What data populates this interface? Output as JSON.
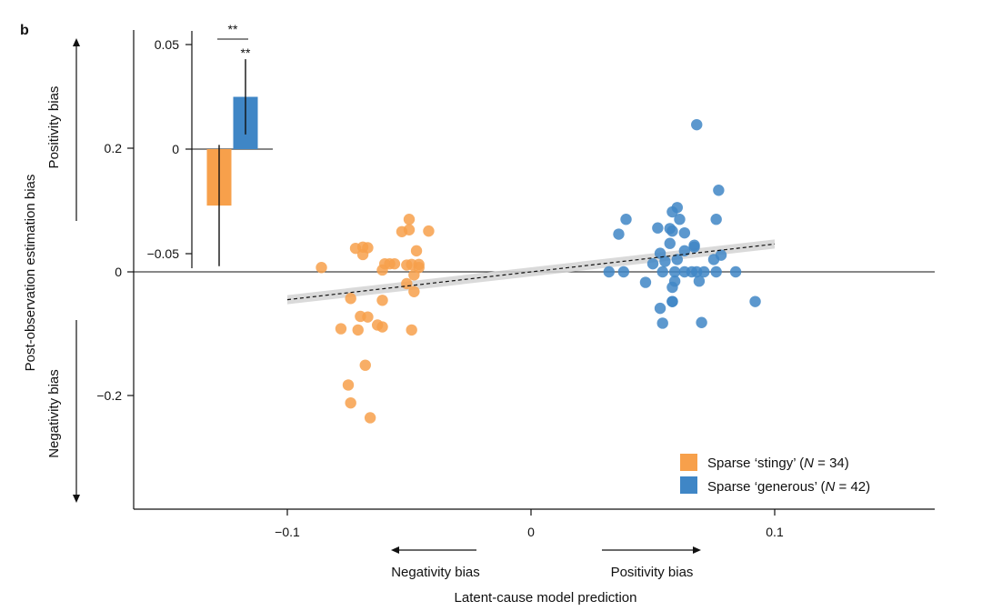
{
  "panel_label": "b",
  "chart_data": [
    {
      "type": "scatter",
      "title": "",
      "xlabel": "Latent-cause model prediction",
      "ylabel": "Post-observation estimation bias",
      "xlim": [
        -0.165,
        0.165
      ],
      "ylim": [
        -0.385,
        0.385
      ],
      "xticks": [
        -0.1,
        0,
        0.1
      ],
      "xtick_labels": [
        "−0.1",
        "0",
        "0.1"
      ],
      "yticks": [
        -0.2,
        0,
        0.2
      ],
      "ytick_labels": [
        "−0.2",
        "0",
        "0.2"
      ],
      "y_annotations": {
        "top": "Positivity bias",
        "bottom": "Negativity bias"
      },
      "x_annotations": {
        "left": "Negativity bias",
        "right": "Positivity bias"
      },
      "legend_position": "bottom-right",
      "series": [
        {
          "name": "Sparse ‘stingy’ (N = 34)",
          "legend_prefix": "Sparse ‘stingy’ (",
          "legend_n_symbol": "N",
          "legend_n_value": " = 34)",
          "color": "#F7A04B",
          "x": [
            -0.086,
            -0.069,
            -0.067,
            -0.072,
            -0.069,
            -0.06,
            -0.058,
            -0.056,
            -0.061,
            -0.05,
            -0.05,
            -0.046,
            -0.046,
            -0.053,
            -0.047,
            -0.049,
            -0.051,
            -0.048,
            -0.042,
            -0.051,
            -0.048,
            -0.061,
            -0.067,
            -0.07,
            -0.074,
            -0.078,
            -0.071,
            -0.063,
            -0.049,
            -0.061,
            -0.068,
            -0.075,
            -0.074,
            -0.066
          ],
          "y": [
            0.007,
            0.04,
            0.039,
            0.038,
            0.028,
            0.013,
            0.013,
            0.013,
            0.003,
            0.085,
            0.068,
            0.012,
            0.007,
            0.065,
            0.034,
            0.012,
            0.011,
            -0.005,
            0.066,
            -0.019,
            -0.032,
            -0.046,
            -0.073,
            -0.072,
            -0.043,
            -0.092,
            -0.094,
            -0.086,
            -0.094,
            -0.089,
            -0.151,
            -0.183,
            -0.212,
            -0.236
          ]
        },
        {
          "name": "Sparse ‘generous’ (N = 42)",
          "legend_prefix": "Sparse ‘generous’ (",
          "legend_n_symbol": "N",
          "legend_n_value": " = 42)",
          "color": "#3F86C6",
          "x": [
            0.068,
            0.077,
            0.058,
            0.06,
            0.039,
            0.052,
            0.057,
            0.061,
            0.076,
            0.036,
            0.058,
            0.063,
            0.057,
            0.067,
            0.067,
            0.063,
            0.053,
            0.078,
            0.055,
            0.075,
            0.06,
            0.05,
            0.032,
            0.038,
            0.054,
            0.059,
            0.063,
            0.066,
            0.068,
            0.071,
            0.076,
            0.084,
            0.047,
            0.059,
            0.058,
            0.058,
            0.069,
            0.092,
            0.053,
            0.058,
            0.054,
            0.07
          ],
          "y": [
            0.238,
            0.132,
            0.097,
            0.104,
            0.085,
            0.071,
            0.07,
            0.085,
            0.085,
            0.061,
            0.066,
            0.063,
            0.046,
            0.043,
            0.04,
            0.034,
            0.03,
            0.027,
            0.017,
            0.02,
            0.02,
            0.013,
            0.0,
            0.0,
            0.0,
            0.0,
            0.0,
            0.0,
            0.0,
            0.0,
            0.0,
            0.0,
            -0.017,
            -0.015,
            -0.025,
            -0.048,
            -0.015,
            -0.048,
            -0.059,
            -0.048,
            -0.083,
            -0.082
          ]
        }
      ],
      "trend_line": {
        "x": [
          -0.1,
          0.1
        ],
        "y": [
          -0.045,
          0.045
        ]
      }
    },
    {
      "type": "bar",
      "title": "",
      "xlabel": "",
      "ylabel": "",
      "categories": [
        "Sparse ‘stingy’",
        "Sparse ‘generous’"
      ],
      "values": [
        -0.027,
        0.025
      ],
      "colors": [
        "#F7A04B",
        "#3F86C6"
      ],
      "error_low": [
        -0.056,
        0.007
      ],
      "error_high": [
        0.002,
        0.043
      ],
      "ylim": [
        -0.057,
        0.057
      ],
      "yticks": [
        -0.05,
        0,
        0.05
      ],
      "ytick_labels": [
        "−0.05",
        "0",
        "0.05"
      ],
      "significance": {
        "pair": "**",
        "single": "**"
      }
    }
  ]
}
